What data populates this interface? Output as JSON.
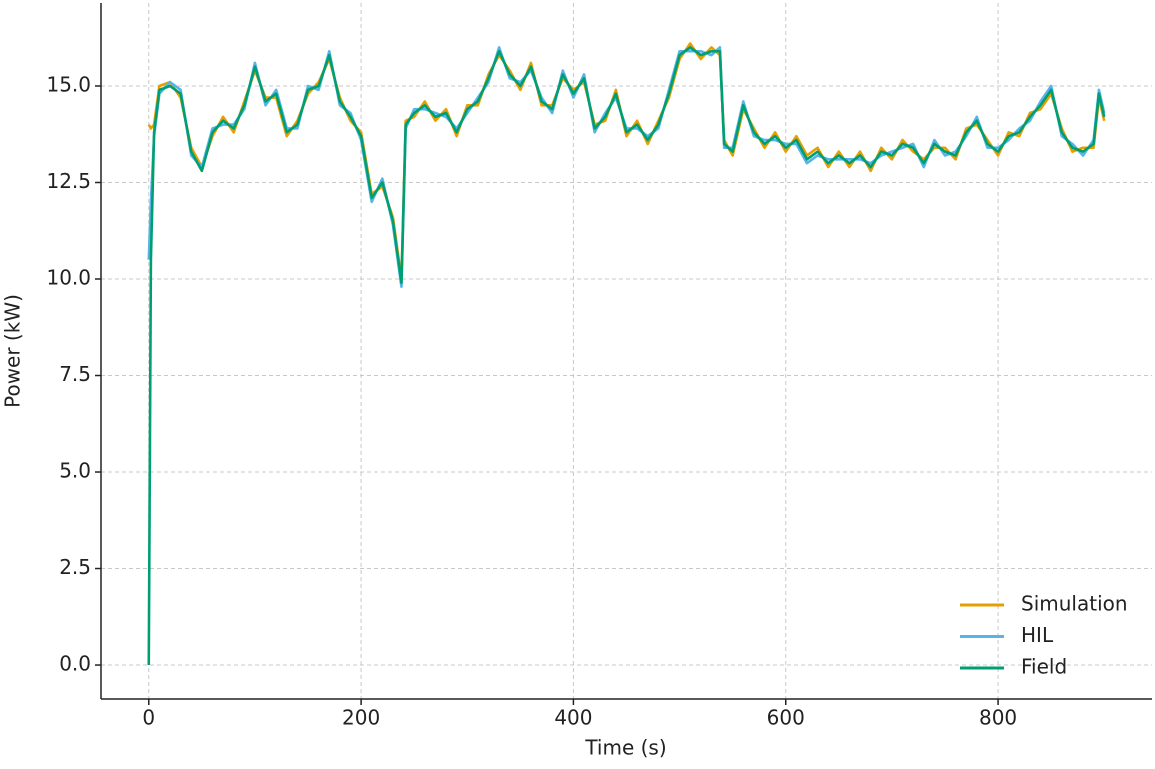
{
  "chart_data": {
    "type": "line",
    "x_label": "Time (s)",
    "y_label": "Power (kW)",
    "x": [
      0,
      2,
      5,
      10,
      20,
      30,
      40,
      50,
      60,
      70,
      80,
      90,
      100,
      110,
      120,
      130,
      140,
      150,
      160,
      170,
      180,
      190,
      200,
      210,
      220,
      230,
      238,
      242,
      250,
      260,
      270,
      280,
      290,
      300,
      310,
      320,
      330,
      340,
      350,
      360,
      370,
      380,
      390,
      400,
      410,
      420,
      430,
      440,
      450,
      460,
      470,
      480,
      490,
      500,
      510,
      520,
      530,
      538,
      542,
      550,
      560,
      570,
      580,
      590,
      600,
      610,
      620,
      630,
      640,
      650,
      660,
      670,
      680,
      690,
      700,
      710,
      720,
      730,
      740,
      750,
      760,
      770,
      780,
      790,
      800,
      810,
      820,
      830,
      840,
      850,
      860,
      870,
      880,
      890,
      895,
      900
    ],
    "series": [
      {
        "name": "Simulation",
        "color": "#E69F00",
        "values": [
          14.0,
          13.9,
          14.0,
          15.0,
          15.1,
          14.7,
          13.4,
          12.9,
          13.7,
          14.2,
          13.8,
          14.6,
          15.4,
          14.7,
          14.7,
          13.7,
          14.1,
          14.8,
          15.1,
          15.7,
          14.7,
          14.1,
          13.8,
          12.2,
          12.4,
          11.6,
          10.0,
          14.1,
          14.2,
          14.6,
          14.1,
          14.4,
          13.7,
          14.5,
          14.5,
          15.3,
          15.8,
          15.4,
          14.9,
          15.6,
          14.5,
          14.5,
          15.2,
          14.9,
          15.1,
          14.0,
          14.1,
          14.9,
          13.7,
          14.1,
          13.5,
          14.1,
          14.7,
          15.7,
          16.1,
          15.7,
          16.0,
          15.8,
          13.6,
          13.2,
          14.4,
          13.9,
          13.4,
          13.8,
          13.3,
          13.7,
          13.2,
          13.4,
          12.9,
          13.3,
          12.9,
          13.3,
          12.8,
          13.4,
          13.1,
          13.6,
          13.3,
          13.1,
          13.4,
          13.4,
          13.1,
          13.9,
          14.0,
          13.6,
          13.2,
          13.8,
          13.7,
          14.3,
          14.4,
          14.8,
          13.9,
          13.3,
          13.4,
          13.4,
          14.7,
          14.1
        ]
      },
      {
        "name": "HIL",
        "color": "#56B4E9",
        "values": [
          10.5,
          12.0,
          13.7,
          14.8,
          15.1,
          14.9,
          13.2,
          12.9,
          13.9,
          14.0,
          14.0,
          14.4,
          15.6,
          14.5,
          14.9,
          13.9,
          13.9,
          15.0,
          14.9,
          15.9,
          14.5,
          14.3,
          13.6,
          12.0,
          12.6,
          11.4,
          9.8,
          13.9,
          14.4,
          14.4,
          14.3,
          14.2,
          13.9,
          14.3,
          14.7,
          15.1,
          16.0,
          15.2,
          15.1,
          15.4,
          14.7,
          14.3,
          15.4,
          14.7,
          15.3,
          13.8,
          14.3,
          14.7,
          13.9,
          13.9,
          13.7,
          13.9,
          14.9,
          15.9,
          15.9,
          15.9,
          15.8,
          16.0,
          13.4,
          13.4,
          14.6,
          13.7,
          13.6,
          13.6,
          13.5,
          13.5,
          13.0,
          13.2,
          13.1,
          13.1,
          13.1,
          13.1,
          13.0,
          13.2,
          13.3,
          13.4,
          13.5,
          12.9,
          13.6,
          13.2,
          13.3,
          13.7,
          14.2,
          13.4,
          13.4,
          13.6,
          13.9,
          14.1,
          14.6,
          15.0,
          13.7,
          13.5,
          13.2,
          13.6,
          14.9,
          14.3
        ]
      },
      {
        "name": "Field",
        "color": "#009E73",
        "values": [
          0.0,
          10.5,
          13.8,
          14.9,
          15.0,
          14.8,
          13.3,
          12.8,
          13.8,
          14.1,
          13.9,
          14.5,
          15.5,
          14.6,
          14.8,
          13.8,
          14.0,
          14.9,
          15.0,
          15.8,
          14.6,
          14.2,
          13.7,
          12.1,
          12.5,
          11.5,
          9.9,
          14.0,
          14.3,
          14.5,
          14.2,
          14.3,
          13.8,
          14.4,
          14.6,
          15.2,
          15.9,
          15.3,
          15.0,
          15.5,
          14.6,
          14.4,
          15.3,
          14.8,
          15.2,
          13.9,
          14.2,
          14.8,
          13.8,
          14.0,
          13.6,
          14.0,
          14.8,
          15.8,
          16.0,
          15.8,
          15.9,
          15.9,
          13.5,
          13.3,
          14.5,
          13.8,
          13.5,
          13.7,
          13.4,
          13.6,
          13.1,
          13.3,
          13.0,
          13.2,
          13.0,
          13.2,
          12.9,
          13.3,
          13.2,
          13.5,
          13.4,
          13.0,
          13.5,
          13.3,
          13.2,
          13.8,
          14.1,
          13.5,
          13.3,
          13.7,
          13.8,
          14.2,
          14.5,
          14.9,
          13.8,
          13.4,
          13.3,
          13.5,
          14.8,
          14.2
        ]
      }
    ],
    "xlim": [
      -45,
      945
    ],
    "ylim": [
      -0.88,
      17.15
    ],
    "xticks": [
      0,
      200,
      400,
      600,
      800
    ],
    "yticks": [
      {
        "value": 0,
        "label": "0.0"
      },
      2.5,
      {
        "value": 5,
        "label": "5.0"
      },
      7.5,
      {
        "value": 10,
        "label": "10.0"
      },
      12.5,
      {
        "value": 15,
        "label": "15.0"
      }
    ],
    "grid": true,
    "legend": "lower right"
  }
}
